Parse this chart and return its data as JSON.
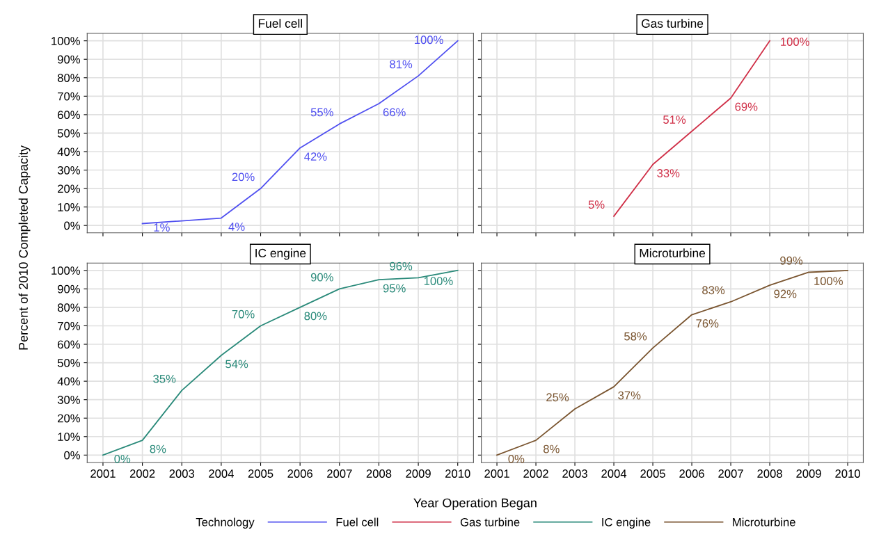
{
  "chart_data": [
    {
      "type": "line",
      "title": "Fuel cell",
      "ylabel": "Percent of 2010 Completed Capacity",
      "legend_title": "Technology",
      "legend": "bottom",
      "grid": true,
      "tick_labels": "y",
      "xlim": [
        2000.6,
        2010.4
      ],
      "xticks": [
        2001,
        2002,
        2003,
        2004,
        2005,
        2006,
        2007,
        2008,
        2009,
        2010
      ],
      "ylim": [
        -4,
        104
      ],
      "yticks": [
        {
          "value": 0,
          "label": "0%"
        },
        {
          "value": 10,
          "label": "10%"
        },
        {
          "value": 20,
          "label": "20%"
        },
        {
          "value": 30,
          "label": "30%"
        },
        {
          "value": 40,
          "label": "40%"
        },
        {
          "value": 50,
          "label": "50%"
        },
        {
          "value": 60,
          "label": "60%"
        },
        {
          "value": 70,
          "label": "70%"
        },
        {
          "value": 80,
          "label": "80%"
        },
        {
          "value": 90,
          "label": "90%"
        },
        {
          "value": 100,
          "label": "100%"
        }
      ],
      "series": [
        {
          "name": "Fuel cell",
          "color": "#5050f0",
          "x": [
            2002,
            2004,
            2005,
            2006,
            2007,
            2008,
            2009,
            2010
          ],
          "values": [
            1,
            4,
            20,
            42,
            55,
            66,
            81,
            100
          ],
          "value_labels": [
            "1%",
            "4%",
            "20%",
            "42%",
            "55%",
            "66%",
            "81%",
            "100%"
          ]
        }
      ]
    },
    {
      "type": "line",
      "title": "Gas turbine",
      "legend": "bottom",
      "grid": true,
      "tick_labels": false,
      "xlim": [
        2000.6,
        2010.4
      ],
      "xticks": [
        2001,
        2002,
        2003,
        2004,
        2005,
        2006,
        2007,
        2008,
        2009,
        2010
      ],
      "ylim": [
        -4,
        104
      ],
      "yticks": [
        0,
        10,
        20,
        30,
        40,
        50,
        60,
        70,
        80,
        90,
        100
      ],
      "series": [
        {
          "name": "Gas turbine",
          "color": "#d03048",
          "x": [
            2004,
            2005,
            2006,
            2007,
            2008
          ],
          "values": [
            5,
            33,
            51,
            69,
            100
          ],
          "value_labels": [
            "5%",
            "33%",
            "51%",
            "69%",
            "100%"
          ]
        }
      ]
    },
    {
      "type": "line",
      "title": "IC engine",
      "legend": "bottom",
      "grid": true,
      "xlim": [
        2000.6,
        2010.4
      ],
      "xticks": [
        2001,
        2002,
        2003,
        2004,
        2005,
        2006,
        2007,
        2008,
        2009,
        2010
      ],
      "ylim": [
        -4,
        104
      ],
      "yticks": [
        {
          "value": 0,
          "label": "0%"
        },
        {
          "value": 10,
          "label": "10%"
        },
        {
          "value": 20,
          "label": "20%"
        },
        {
          "value": 30,
          "label": "30%"
        },
        {
          "value": 40,
          "label": "40%"
        },
        {
          "value": 50,
          "label": "50%"
        },
        {
          "value": 60,
          "label": "60%"
        },
        {
          "value": 70,
          "label": "70%"
        },
        {
          "value": 80,
          "label": "80%"
        },
        {
          "value": 90,
          "label": "90%"
        },
        {
          "value": 100,
          "label": "100%"
        }
      ],
      "series": [
        {
          "name": "IC engine",
          "color": "#2a8a7a",
          "x": [
            2001,
            2002,
            2003,
            2004,
            2005,
            2006,
            2007,
            2008,
            2009,
            2010
          ],
          "values": [
            0,
            8,
            35,
            54,
            70,
            80,
            90,
            95,
            96,
            100
          ],
          "value_labels": [
            "0%",
            "8%",
            "35%",
            "54%",
            "70%",
            "80%",
            "90%",
            "95%",
            "96%",
            "100%"
          ]
        }
      ]
    },
    {
      "type": "line",
      "title": "Microturbine",
      "xlabel": "Year Operation Began",
      "legend": "bottom",
      "grid": true,
      "tick_labels": "x",
      "xlim": [
        2000.6,
        2010.4
      ],
      "xticks": [
        2001,
        2002,
        2003,
        2004,
        2005,
        2006,
        2007,
        2008,
        2009,
        2010
      ],
      "ylim": [
        -4,
        104
      ],
      "yticks": [
        0,
        10,
        20,
        30,
        40,
        50,
        60,
        70,
        80,
        90,
        100
      ],
      "series": [
        {
          "name": "Microturbine",
          "color": "#7a5530",
          "x": [
            2001,
            2002,
            2003,
            2004,
            2005,
            2006,
            2007,
            2008,
            2009,
            2010
          ],
          "values": [
            0,
            8,
            25,
            37,
            58,
            76,
            83,
            92,
            99,
            100
          ],
          "value_labels": [
            "0%",
            "8%",
            "25%",
            "37%",
            "58%",
            "76%",
            "83%",
            "92%",
            "99%",
            "100%"
          ]
        }
      ]
    }
  ]
}
